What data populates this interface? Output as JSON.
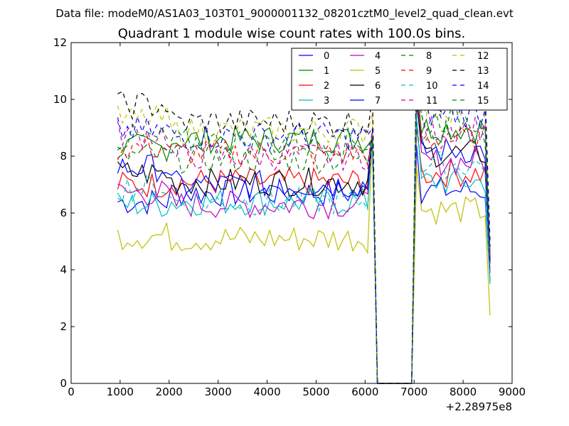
{
  "header": {
    "data_file": "Data file: modeM0/AS1A03_103T01_9000001132_08201cztM0_level2_quad_clean.evt"
  },
  "chart_data": {
    "type": "line",
    "title": "Quadrant 1 module wise count rates with 100.0s bins.",
    "xlabel": "",
    "ylabel": "",
    "x_offset_label": "+2.28975e8",
    "xlim": [
      0,
      9000
    ],
    "ylim": [
      0,
      12
    ],
    "x_ticks": [
      0,
      1000,
      2000,
      3000,
      4000,
      5000,
      6000,
      7000,
      8000,
      9000
    ],
    "y_ticks": [
      0,
      2,
      4,
      6,
      8,
      10,
      12
    ],
    "grid": false,
    "legend_position": "top-right",
    "legend_columns": 4,
    "segments": [
      {
        "x_start": 950,
        "x_end": 6150,
        "step": 100
      },
      {
        "x_start": 6250,
        "x_end": 6950,
        "step": 100
      },
      {
        "x_start": 7050,
        "x_end": 8550,
        "step": 100
      }
    ],
    "series": [
      {
        "name": "0",
        "color": "#0000ff",
        "style": "solid",
        "level1": 6.4,
        "level2": 6.7,
        "level3": 6.8,
        "drop_end": 3.6
      },
      {
        "name": "1",
        "color": "#008000",
        "style": "solid",
        "level1": 8.3,
        "level2": 8.6,
        "level3": 9.0,
        "drop_end": 4.2
      },
      {
        "name": "2",
        "color": "#ff0000",
        "style": "solid",
        "level1": 7.0,
        "level2": 7.1,
        "level3": 7.4,
        "drop_end": 3.9
      },
      {
        "name": "3",
        "color": "#00bfbf",
        "style": "solid",
        "level1": 6.3,
        "level2": 6.4,
        "level3": 7.1,
        "drop_end": 3.5
      },
      {
        "name": "4",
        "color": "#bf00bf",
        "style": "solid",
        "level1": 6.7,
        "level2": 6.3,
        "level3": 7.8,
        "drop_end": 3.9
      },
      {
        "name": "5",
        "color": "#bfbf00",
        "style": "solid",
        "level1": 5.2,
        "level2": 5.1,
        "level3": 6.1,
        "drop_end": 2.4
      },
      {
        "name": "6",
        "color": "#000000",
        "style": "solid",
        "level1": 7.4,
        "level2": 7.1,
        "level3": 8.1,
        "drop_end": 4.3
      },
      {
        "name": "7",
        "color": "#0000ff",
        "style": "solid",
        "level1": 7.6,
        "level2": 7.0,
        "level3": 8.2,
        "drop_end": 4.4
      },
      {
        "name": "8",
        "color": "#008000",
        "style": "dashed",
        "level1": 8.0,
        "level2": 7.9,
        "level3": 8.8,
        "drop_end": 4.5
      },
      {
        "name": "9",
        "color": "#ff0000",
        "style": "dashed",
        "level1": 8.3,
        "level2": 8.1,
        "level3": 8.6,
        "drop_end": 4.5
      },
      {
        "name": "10",
        "color": "#00bfbf",
        "style": "dashed",
        "level1": 6.9,
        "level2": 6.4,
        "level3": 7.7,
        "drop_end": 3.6
      },
      {
        "name": "11",
        "color": "#bf00bf",
        "style": "dashed",
        "level1": 8.8,
        "level2": 8.0,
        "level3": 9.0,
        "drop_end": 4.5
      },
      {
        "name": "12",
        "color": "#bfbf00",
        "style": "dashed",
        "level1": 9.3,
        "level2": 8.9,
        "level3": 9.7,
        "drop_end": 4.7
      },
      {
        "name": "13",
        "color": "#000000",
        "style": "dashed",
        "level1": 9.8,
        "level2": 9.2,
        "level3": 10.0,
        "drop_end": 5.0
      },
      {
        "name": "14",
        "color": "#0000ff",
        "style": "dashed",
        "level1": 8.9,
        "level2": 8.7,
        "level3": 9.5,
        "drop_end": 4.8
      },
      {
        "name": "15",
        "color": "#008000",
        "style": "dashed",
        "level1": 8.6,
        "level2": 8.5,
        "level3": 9.3,
        "drop_end": 4.6
      }
    ]
  }
}
